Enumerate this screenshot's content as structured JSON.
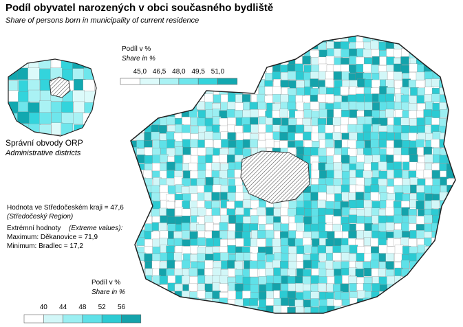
{
  "header": {
    "title": "Podíl obyvatel narozených v obci současného bydliště",
    "subtitle": "Share of persons born in municipality of current residence"
  },
  "inset": {
    "label": "Správní obvody  ORP",
    "label_en": "Administrative districts",
    "legend": {
      "title": "Podíl v %",
      "title_en": "Share in %",
      "breaks": [
        "45,0",
        "46,5",
        "48,0",
        "49,5",
        "51,0"
      ],
      "colors": [
        "#ffffff",
        "#dcfafa",
        "#aaf2f4",
        "#6ee6ec",
        "#33d4dc",
        "#12a8b0"
      ]
    }
  },
  "info": {
    "region_value": "Hodnota ve Středočeském kraji = 47,6",
    "region_name": "(Středočeský Region)",
    "extremes": "Extrémní hodnoty",
    "extremes_en": "(Extreme values):",
    "maximum": "Maximum: Děkanovice = 71,9",
    "minimum": "Minimum: Bradlec = 17,2"
  },
  "legend": {
    "title": "Podíl v %",
    "title_en": "Share in %",
    "breaks": [
      "40",
      "44",
      "48",
      "52",
      "56"
    ],
    "colors": [
      "#ffffff",
      "#d2f7f8",
      "#9beff2",
      "#5fe1e8",
      "#2ccbd3",
      "#14a3ab"
    ]
  }
}
